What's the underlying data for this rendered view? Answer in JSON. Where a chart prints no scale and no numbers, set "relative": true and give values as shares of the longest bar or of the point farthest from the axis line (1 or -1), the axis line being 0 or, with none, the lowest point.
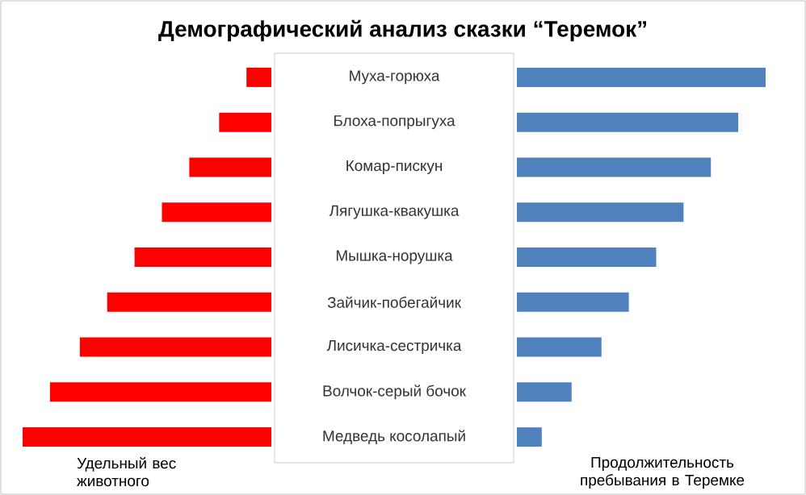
{
  "chart_data": [
    {
      "type": "bar",
      "orientation": "horizontal",
      "relative": true,
      "title": "Демографический анализ сказки “Теремок”",
      "categories": [
        "Муха-горюха",
        "Блоха-попрыгуха",
        "Комар-пискун",
        "Лягушка-квакушка",
        "Мышка-норушка",
        "Зайчик-побегайчик",
        "Лисичка-сестричка",
        "Волчок-серый бочок",
        "Медведь косолапый"
      ],
      "series": [
        {
          "name": "Удельный вес животного",
          "color": "#ff0000",
          "values": [
            -0.1,
            -0.21,
            -0.33,
            -0.44,
            -0.55,
            -0.66,
            -0.77,
            -0.89,
            -1
          ]
        }
      ]
    },
    {
      "type": "bar",
      "orientation": "horizontal",
      "relative": true,
      "categories": [
        null,
        null,
        null,
        null,
        null,
        null,
        null,
        null,
        null
      ],
      "series": [
        {
          "name": "Продолжительность пребывания в Теремке",
          "color": "#4f81bd",
          "values": [
            1,
            0.89,
            0.78,
            0.67,
            0.56,
            0.45,
            0.34,
            0.22,
            0.1
          ]
        }
      ]
    }
  ]
}
